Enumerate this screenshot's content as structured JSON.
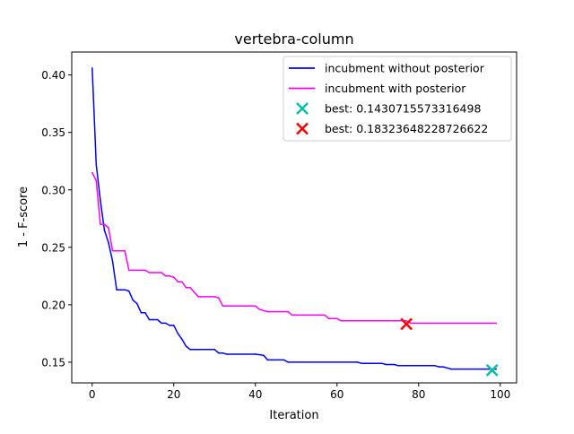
{
  "chart_data": {
    "type": "line",
    "title": "vertebra-column",
    "xlabel": "Iteration",
    "ylabel": "1 - F-score",
    "xlim": [
      -5,
      104
    ],
    "ylim": [
      0.132,
      0.42
    ],
    "xticks": [
      0,
      20,
      40,
      60,
      80,
      100
    ],
    "yticks": [
      0.15,
      0.2,
      0.25,
      0.3,
      0.35,
      0.4
    ],
    "xtick_labels": [
      "0",
      "20",
      "40",
      "60",
      "80",
      "100"
    ],
    "ytick_labels": [
      "0.15",
      "0.20",
      "0.25",
      "0.30",
      "0.35",
      "0.40"
    ],
    "legend_position": "top-right",
    "grid": false,
    "series": [
      {
        "name": "incubment without posterior",
        "color": "#0000ff",
        "points": [
          [
            0,
            0.406
          ],
          [
            1,
            0.322
          ],
          [
            2,
            0.291
          ],
          [
            3,
            0.265
          ],
          [
            4,
            0.254
          ],
          [
            5,
            0.238
          ],
          [
            6,
            0.213
          ],
          [
            7,
            0.213
          ],
          [
            8,
            0.213
          ],
          [
            9,
            0.212
          ],
          [
            10,
            0.204
          ],
          [
            11,
            0.201
          ],
          [
            12,
            0.193
          ],
          [
            13,
            0.193
          ],
          [
            14,
            0.187
          ],
          [
            15,
            0.187
          ],
          [
            16,
            0.187
          ],
          [
            17,
            0.184
          ],
          [
            18,
            0.184
          ],
          [
            19,
            0.182
          ],
          [
            20,
            0.182
          ],
          [
            21,
            0.175
          ],
          [
            22,
            0.17
          ],
          [
            23,
            0.164
          ],
          [
            24,
            0.161
          ],
          [
            25,
            0.161
          ],
          [
            30,
            0.161
          ],
          [
            31,
            0.158
          ],
          [
            32,
            0.158
          ],
          [
            33,
            0.157
          ],
          [
            40,
            0.157
          ],
          [
            42,
            0.156
          ],
          [
            43,
            0.152
          ],
          [
            44,
            0.152
          ],
          [
            47,
            0.152
          ],
          [
            48,
            0.15
          ],
          [
            65,
            0.15
          ],
          [
            66,
            0.149
          ],
          [
            71,
            0.149
          ],
          [
            72,
            0.148
          ],
          [
            74,
            0.148
          ],
          [
            75,
            0.147
          ],
          [
            84,
            0.147
          ],
          [
            85,
            0.146
          ],
          [
            86,
            0.146
          ],
          [
            87,
            0.145
          ],
          [
            88,
            0.144
          ],
          [
            99,
            0.144
          ]
        ]
      },
      {
        "name": "incubment with posterior",
        "color": "#ff00ff",
        "points": [
          [
            0,
            0.315
          ],
          [
            1,
            0.308
          ],
          [
            2,
            0.27
          ],
          [
            3,
            0.27
          ],
          [
            4,
            0.267
          ],
          [
            5,
            0.247
          ],
          [
            6,
            0.247
          ],
          [
            7,
            0.247
          ],
          [
            8,
            0.247
          ],
          [
            9,
            0.23
          ],
          [
            10,
            0.23
          ],
          [
            13,
            0.23
          ],
          [
            14,
            0.228
          ],
          [
            17,
            0.228
          ],
          [
            18,
            0.225
          ],
          [
            19,
            0.225
          ],
          [
            20,
            0.224
          ],
          [
            21,
            0.22
          ],
          [
            22,
            0.22
          ],
          [
            23,
            0.215
          ],
          [
            24,
            0.215
          ],
          [
            25,
            0.211
          ],
          [
            26,
            0.207
          ],
          [
            29,
            0.207
          ],
          [
            30,
            0.207
          ],
          [
            31,
            0.206
          ],
          [
            32,
            0.199
          ],
          [
            33,
            0.199
          ],
          [
            40,
            0.199
          ],
          [
            41,
            0.196
          ],
          [
            42,
            0.195
          ],
          [
            43,
            0.194
          ],
          [
            48,
            0.194
          ],
          [
            49,
            0.191
          ],
          [
            57,
            0.191
          ],
          [
            58,
            0.188
          ],
          [
            60,
            0.188
          ],
          [
            61,
            0.186
          ],
          [
            77,
            0.186
          ],
          [
            78,
            0.184
          ],
          [
            99,
            0.184
          ]
        ]
      }
    ],
    "markers": [
      {
        "label": "best: 0.1430715573316498",
        "x": 98,
        "y": 0.143,
        "color": "#00bfa5"
      },
      {
        "label": "best: 0.18323648228726622",
        "x": 77,
        "y": 0.1832,
        "color": "#ff0000"
      }
    ]
  }
}
